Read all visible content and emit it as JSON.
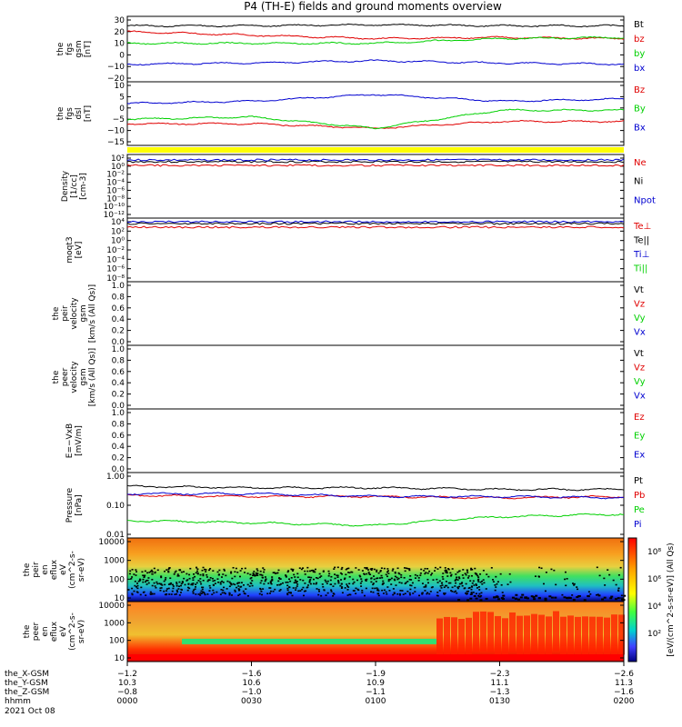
{
  "title": "P4 (TH-E) fields and ground moments overview",
  "colors": {
    "black": "#000000",
    "red": "#e00000",
    "green": "#00d000",
    "blue": "#0000d0",
    "yellow": "#ffff00"
  },
  "panels": [
    {
      "id": "fgs-gsm",
      "ylabel": [
        "the",
        "fgs",
        "gsm",
        "[nT]"
      ],
      "ticks": [
        "30",
        "20",
        "10",
        "0",
        "−10",
        "−20"
      ],
      "legend": [
        {
          "t": "Bt",
          "c": "black"
        },
        {
          "t": "bz",
          "c": "red"
        },
        {
          "t": "by",
          "c": "green"
        },
        {
          "t": "bx",
          "c": "blue"
        }
      ]
    },
    {
      "id": "fgs-dsl",
      "ylabel": [
        "the",
        "fgs",
        "dsl",
        "[nT]"
      ],
      "ticks": [
        "10",
        "5",
        "0",
        "−5",
        "−10",
        "−15"
      ],
      "legend": [
        {
          "t": "Bz",
          "c": "red"
        },
        {
          "t": "By",
          "c": "green"
        },
        {
          "t": "Bx",
          "c": "blue"
        }
      ]
    },
    {
      "id": "flag",
      "ylabel": [],
      "ticks": [],
      "legend": []
    },
    {
      "id": "density",
      "ylabel": [
        "Density",
        "[1/cc]",
        "[cm-3]"
      ],
      "ticks": [
        "10²",
        "10⁰",
        "10⁻²",
        "10⁻⁴",
        "10⁻⁶",
        "10⁻⁸",
        "10⁻¹⁰",
        "10⁻¹²"
      ],
      "legend": [
        {
          "t": "Ne",
          "c": "red"
        },
        {
          "t": "Ni",
          "c": "black"
        },
        {
          "t": "Npot",
          "c": "blue"
        }
      ]
    },
    {
      "id": "temp",
      "ylabel": [
        "moqt3",
        "[eV]"
      ],
      "ticks": [
        "10⁴",
        "10²",
        "10⁰",
        "10⁻²",
        "10⁻⁴",
        "10⁻⁶",
        "10⁻⁸"
      ],
      "legend": [
        {
          "t": "Te⊥",
          "c": "red"
        },
        {
          "t": "Te||",
          "c": "black"
        },
        {
          "t": "Ti⊥",
          "c": "blue"
        },
        {
          "t": "Ti||",
          "c": "green"
        }
      ]
    },
    {
      "id": "peir-vel",
      "ylabel": [
        "the",
        "peir",
        "velocity",
        "gsm",
        "[km/s (All Qs)]"
      ],
      "ticks": [
        "1.0",
        "0.8",
        "0.6",
        "0.4",
        "0.2",
        "0.0"
      ],
      "legend": [
        {
          "t": "Vt",
          "c": "black"
        },
        {
          "t": "Vz",
          "c": "red"
        },
        {
          "t": "Vy",
          "c": "green"
        },
        {
          "t": "Vx",
          "c": "blue"
        }
      ]
    },
    {
      "id": "peer-vel",
      "ylabel": [
        "the",
        "peer",
        "velocity",
        "gsm",
        "[km/s (All Qs)]"
      ],
      "ticks": [
        "1.0",
        "0.8",
        "0.6",
        "0.4",
        "0.2",
        "0.0"
      ],
      "legend": [
        {
          "t": "Vt",
          "c": "black"
        },
        {
          "t": "Vz",
          "c": "red"
        },
        {
          "t": "Vy",
          "c": "green"
        },
        {
          "t": "Vx",
          "c": "blue"
        }
      ]
    },
    {
      "id": "efield",
      "ylabel": [
        "E=−VxB",
        "[mV/m]"
      ],
      "ticks": [
        "1.0",
        "0.8",
        "0.6",
        "0.4",
        "0.2",
        "0.0"
      ],
      "legend": [
        {
          "t": "Ez",
          "c": "red"
        },
        {
          "t": "Ey",
          "c": "green"
        },
        {
          "t": "Ex",
          "c": "blue"
        }
      ]
    },
    {
      "id": "pressure",
      "ylabel": [
        "Pressure",
        "[nPa]"
      ],
      "ticks": [
        "1.00",
        "0.10",
        "0.01"
      ],
      "legend": [
        {
          "t": "Pt",
          "c": "black"
        },
        {
          "t": "Pb",
          "c": "red"
        },
        {
          "t": "Pe",
          "c": "green"
        },
        {
          "t": "Pi",
          "c": "blue"
        }
      ]
    },
    {
      "id": "peir-eflux",
      "ylabel": [
        "the",
        "peir",
        "en",
        "eflux",
        "eV",
        "(cm^2-s-",
        "sr-eV)"
      ],
      "ticks": [
        "10000",
        "1000",
        "100",
        "10"
      ],
      "legend": []
    },
    {
      "id": "peer-eflux",
      "ylabel": [
        "the",
        "peer",
        "en",
        "eflux",
        "eV",
        "(cm^2-s-",
        "sr-eV)"
      ],
      "ticks": [
        "10000",
        "1000",
        "100",
        "10"
      ],
      "legend": []
    }
  ],
  "colorbar": {
    "ticks": [
      "10⁸",
      "10⁶",
      "10⁴",
      "10²"
    ],
    "label": "[eV/(cm^2-s-sr-eV)] (All Qs)"
  },
  "xaxis": {
    "rows": [
      {
        "label": "the_X-GSM",
        "vals": [
          "−1.2",
          "−1.6",
          "−1.9",
          "−2.3",
          "−2.6"
        ]
      },
      {
        "label": "the_Y-GSM",
        "vals": [
          "10.3",
          "10.6",
          "10.9",
          "11.1",
          "11.3"
        ]
      },
      {
        "label": "the_Z-GSM",
        "vals": [
          "−0.8",
          "−1.0",
          "−1.1",
          "−1.3",
          "−1.6"
        ]
      },
      {
        "label": "hhmm",
        "vals": [
          "0000",
          "0030",
          "0100",
          "0130",
          "0200"
        ]
      }
    ],
    "date": "2021 Oct 08"
  },
  "chart_data": {
    "type": "line",
    "x": [
      "0000",
      "0030",
      "0100",
      "0130",
      "0200"
    ],
    "series": [
      {
        "name": "Bt",
        "panel": "fgs-gsm",
        "values": [
          25,
          25,
          26,
          25,
          25
        ]
      },
      {
        "name": "bz",
        "panel": "fgs-gsm",
        "values": [
          20,
          17,
          14,
          15,
          14
        ]
      },
      {
        "name": "by",
        "panel": "fgs-gsm",
        "values": [
          10,
          10,
          10,
          14,
          15
        ]
      },
      {
        "name": "bx",
        "panel": "fgs-gsm",
        "values": [
          -8,
          -7,
          -5,
          -7,
          -8
        ]
      },
      {
        "name": "Bz",
        "panel": "fgs-dsl",
        "values": [
          -7,
          -7,
          -9,
          -6,
          -6
        ]
      },
      {
        "name": "By",
        "panel": "fgs-dsl",
        "values": [
          -5,
          -4,
          -9,
          -1,
          -1
        ]
      },
      {
        "name": "Bx",
        "panel": "fgs-dsl",
        "values": [
          2,
          3,
          6,
          3,
          4
        ]
      },
      {
        "name": "Pt",
        "panel": "pressure",
        "values": [
          0.45,
          0.4,
          0.4,
          0.35,
          0.35
        ]
      },
      {
        "name": "Pb",
        "panel": "pressure",
        "values": [
          0.22,
          0.2,
          0.2,
          0.18,
          0.2
        ]
      },
      {
        "name": "Pe",
        "panel": "pressure",
        "values": [
          0.03,
          0.025,
          0.02,
          0.04,
          0.05
        ]
      },
      {
        "name": "Pi",
        "panel": "pressure",
        "values": [
          0.25,
          0.25,
          0.2,
          0.2,
          0.18
        ]
      }
    ]
  }
}
